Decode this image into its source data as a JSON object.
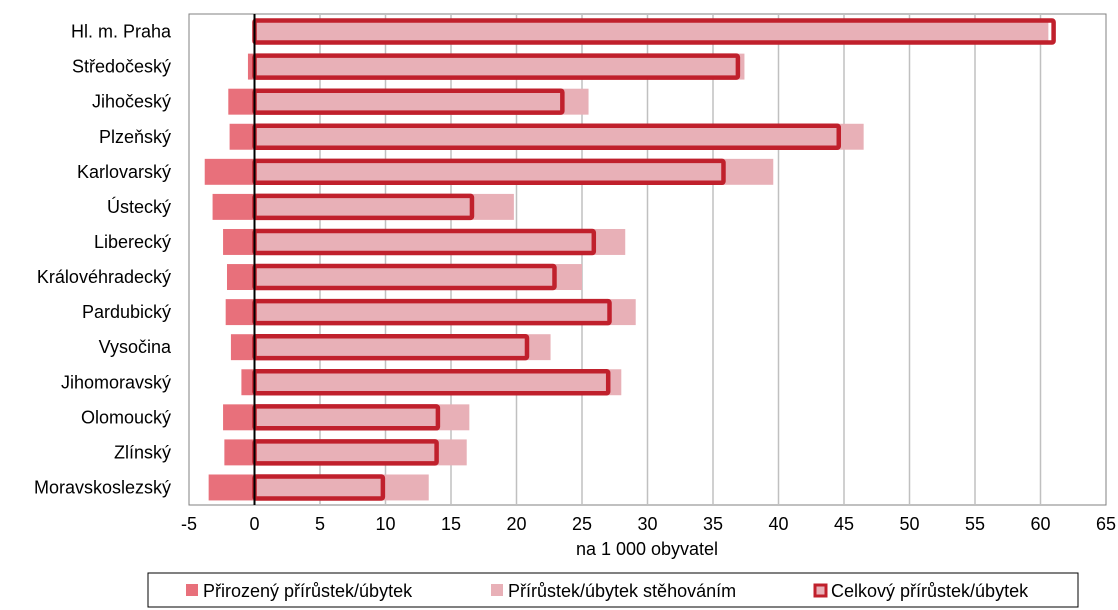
{
  "chart_data": {
    "type": "bar",
    "orientation": "horizontal",
    "stacking": "overlay",
    "categories": [
      "Hl. m. Praha",
      "Středočeský",
      "Jihočeský",
      "Plzeňský",
      "Karlovarský",
      "Ústecký",
      "Liberecký",
      "Královéhradecký",
      "Pardubický",
      "Vysočina",
      "Jihomoravský",
      "Olomoucký",
      "Zlínský",
      "Moravskoslezský"
    ],
    "series": [
      {
        "name": "Přirozený přírůstek/úbytek",
        "color": "#e8707b",
        "values": [
          0.4,
          -0.5,
          -2.0,
          -1.9,
          -3.8,
          -3.2,
          -2.4,
          -2.1,
          -2.2,
          -1.8,
          -1.0,
          -2.4,
          -2.3,
          -3.5
        ]
      },
      {
        "name": "Přírůstek/úbytek stěhováním",
        "color": "#e8b0b7",
        "values": [
          60.6,
          37.4,
          25.5,
          46.5,
          39.6,
          19.8,
          28.3,
          25.0,
          29.1,
          22.6,
          28.0,
          16.4,
          16.2,
          13.3
        ]
      },
      {
        "name": "Celkový přírůstek/úbytek",
        "color": "#c0202c",
        "values": [
          61.0,
          36.9,
          23.5,
          44.6,
          35.8,
          16.6,
          25.9,
          22.9,
          27.1,
          20.8,
          27.0,
          14.0,
          13.9,
          9.8
        ]
      }
    ],
    "xlabel": "na 1 000 obyvatel",
    "xlim": [
      -5,
      65
    ],
    "xticks": [
      "-5",
      "0",
      "5",
      "10",
      "15",
      "20",
      "25",
      "30",
      "35",
      "40",
      "45",
      "50",
      "55",
      "60",
      "65"
    ],
    "grid": "vertical",
    "legend_position": "bottom"
  }
}
